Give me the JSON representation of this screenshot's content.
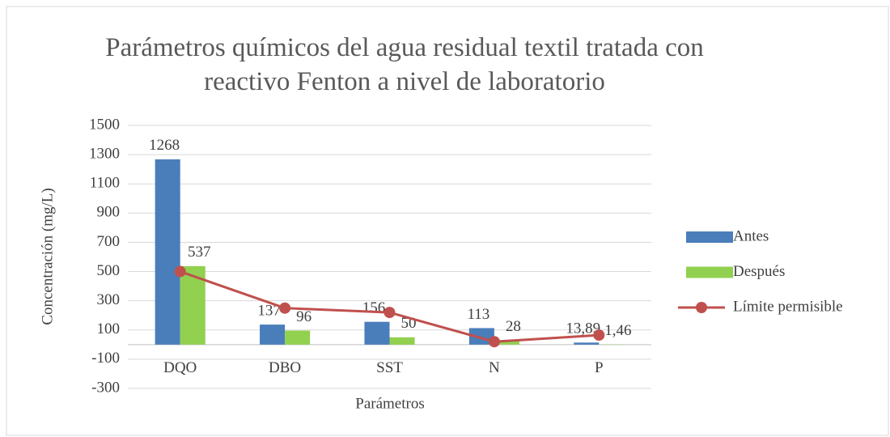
{
  "chart_data": {
    "type": "bar-line",
    "title": "Parámetros químicos del agua residual textil tratada con reactivo Fenton a nivel de laboratorio",
    "y_label": "Concentración (mg/L)",
    "x_label": "Parámetros",
    "categories": [
      "DQO",
      "DBO",
      "SST",
      "N",
      "P"
    ],
    "series": [
      {
        "name": "Antes",
        "type": "bar",
        "color": "#4a7ebb",
        "values": [
          1268,
          137,
          156,
          113,
          13.89
        ],
        "value_labels": [
          "1268",
          "137",
          "156",
          "113",
          "13,89"
        ]
      },
      {
        "name": "Después",
        "type": "bar",
        "color": "#92d050",
        "values": [
          537,
          96,
          50,
          28,
          1.46
        ],
        "value_labels": [
          "537",
          "96",
          "50",
          "28",
          "1,46"
        ]
      },
      {
        "name": "Límite permisible",
        "type": "line",
        "color": "#c0504d",
        "values": [
          500,
          250,
          220,
          20,
          65
        ]
      }
    ],
    "ylim": [
      -300,
      1500
    ],
    "yticks": [
      -300,
      -100,
      100,
      300,
      500,
      700,
      900,
      1100,
      1300,
      1500
    ],
    "grid": true,
    "legend": "right"
  }
}
